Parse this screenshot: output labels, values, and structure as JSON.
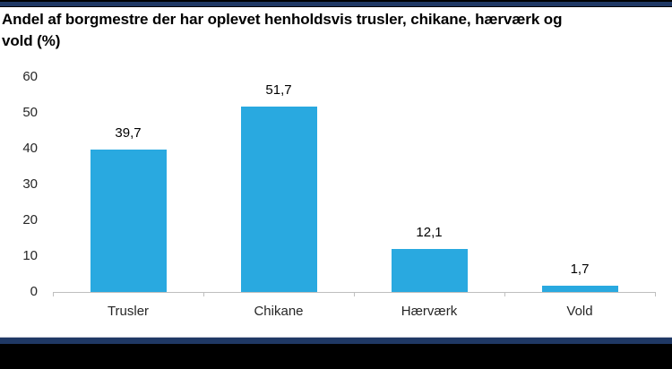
{
  "header": {
    "title_line1": "Andel af borgmestre der har oplevet henholdsvis trusler, chikane, hærværk og",
    "title_line2": "vold (%)"
  },
  "chart_data": {
    "type": "bar",
    "title": "Andel af borgmestre der har oplevet henholdsvis trusler, chikane, hærværk og vold (%)",
    "categories": [
      "Trusler",
      "Chikane",
      "Hærværk",
      "Vold"
    ],
    "values": [
      39.7,
      51.7,
      12.1,
      1.7
    ],
    "value_labels": [
      "39,7",
      "51,7",
      "12,1",
      "1,7"
    ],
    "xlabel": "",
    "ylabel": "",
    "ylim": [
      0,
      60
    ],
    "ytick_interval": 10,
    "ytick_labels": [
      "0",
      "10",
      "20",
      "30",
      "40",
      "50",
      "60"
    ],
    "grid": false,
    "legend": "none",
    "bar_color": "#29a9e0",
    "axis_color": "#bfbfbf",
    "label_color": "#262626"
  },
  "frame": {
    "top_band_color": "#1f3864",
    "bottom_band_color": "#1f3864",
    "footer_color": "#000000"
  }
}
